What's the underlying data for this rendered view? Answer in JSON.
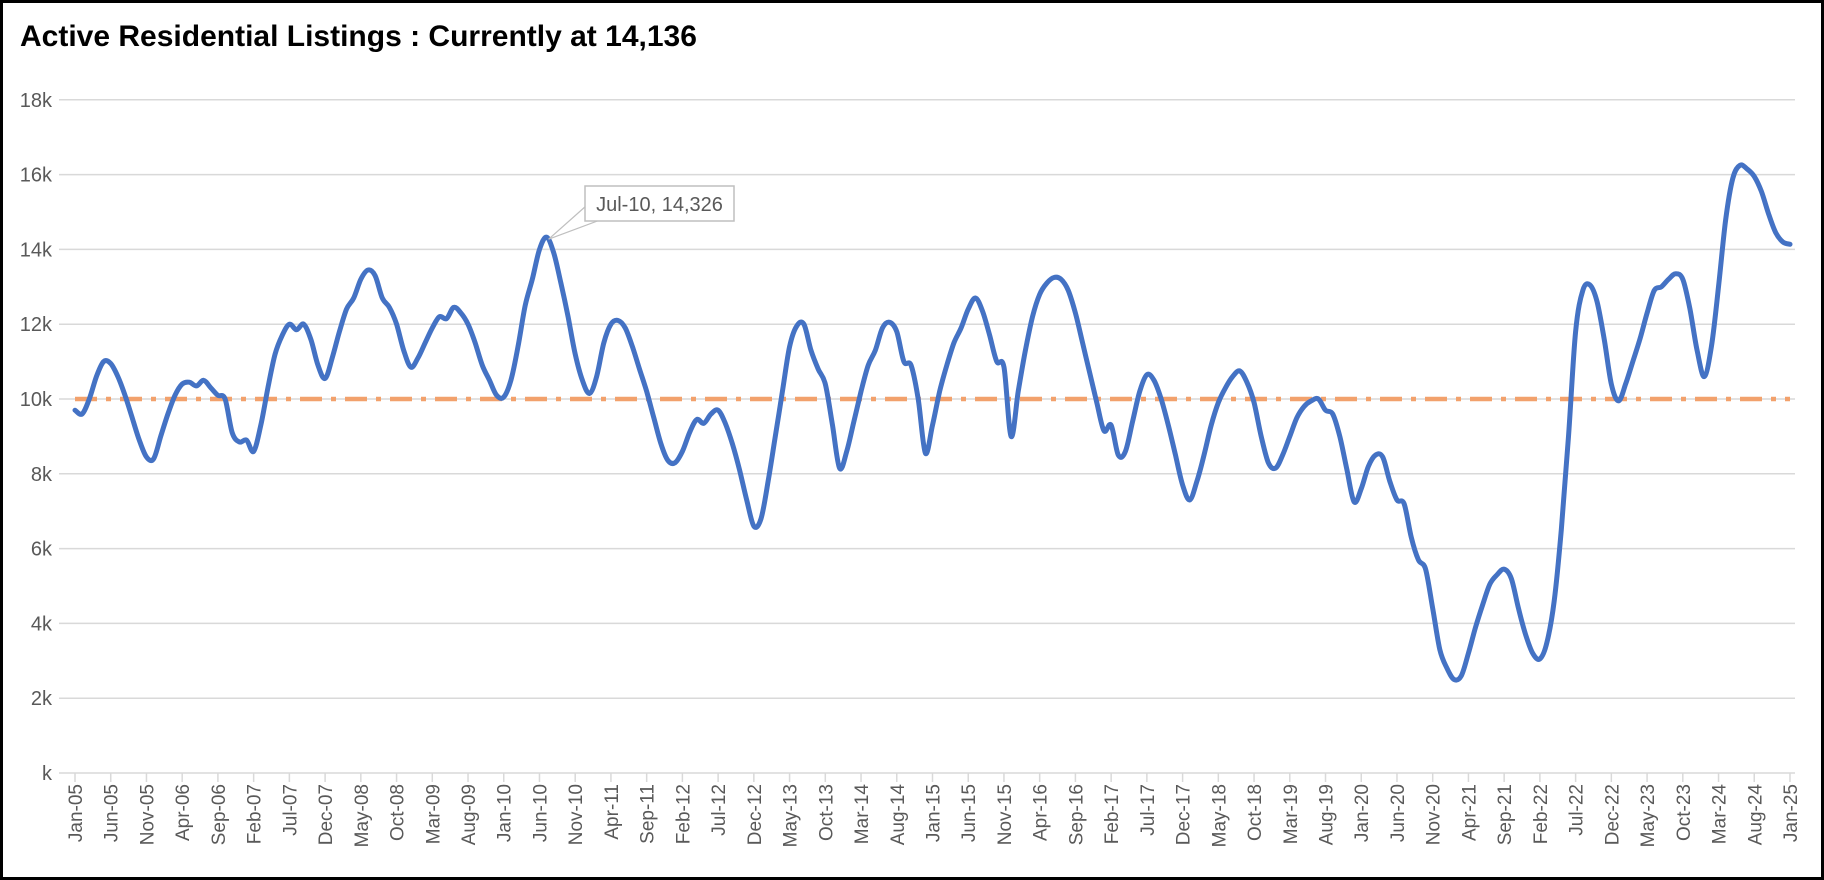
{
  "title": "Active Residential Listings : Currently at  14,136",
  "current_value": "14,136",
  "colors": {
    "series_line": "#4472C4",
    "reference_line": "#F2A16C",
    "gridline": "#D9D9D9",
    "axis_text": "#595959",
    "title_text": "#000000",
    "callout_border": "#BFBFBF",
    "frame_border": "#000000",
    "background": "#FFFFFF"
  },
  "chart_data": {
    "type": "line",
    "title": "Active Residential Listings : Currently at  14,136",
    "xlabel": "",
    "ylabel": "",
    "grid": "horizontal",
    "legend": "none",
    "ylim": [
      0,
      18000
    ],
    "y_unit": "thousands of listings",
    "y_tick_labels": [
      "k",
      "2k",
      "4k",
      "6k",
      "8k",
      "10k",
      "12k",
      "14k",
      "16k",
      "18k"
    ],
    "y_tick_values_k": [
      0,
      2,
      4,
      6,
      8,
      10,
      12,
      14,
      16,
      18
    ],
    "x_start": "Jan-05",
    "x_end": "Jan-25",
    "x_frequency": "monthly",
    "x_tick_interval_months": 5,
    "x_tick_labels": [
      "Jan-05",
      "Jun-05",
      "Nov-05",
      "Apr-06",
      "Sep-06",
      "Feb-07",
      "Jul-07",
      "Dec-07",
      "May-08",
      "Oct-08",
      "Mar-09",
      "Aug-09",
      "Jan-10",
      "Jun-10",
      "Nov-10",
      "Apr-11",
      "Sep-11",
      "Feb-12",
      "Jul-12",
      "Dec-12",
      "May-13",
      "Oct-13",
      "Mar-14",
      "Aug-14",
      "Jan-15",
      "Jun-15",
      "Nov-15",
      "Apr-16",
      "Sep-16",
      "Feb-17",
      "Jul-17",
      "Dec-17",
      "May-18",
      "Oct-18",
      "Mar-19",
      "Aug-19",
      "Jan-20",
      "Jun-20",
      "Nov-20",
      "Apr-21",
      "Sep-21",
      "Feb-22",
      "Jul-22",
      "Dec-22",
      "May-23",
      "Oct-23",
      "Mar-24",
      "Aug-24",
      "Jan-25"
    ],
    "reference_line": {
      "value_k": 10,
      "style": "dash-dot",
      "color": "#F2A16C"
    },
    "annotation": {
      "label": "Jul-10, 14,326",
      "target_month": "Jul-10",
      "target_index": 66,
      "target_value": 14326
    },
    "series": [
      {
        "name": "Active Residential Listings",
        "color": "#4472C4",
        "start_month": "Jan-05",
        "values_thousands": [
          9.7,
          9.6,
          10.0,
          10.6,
          11.0,
          10.95,
          10.6,
          10.1,
          9.5,
          8.9,
          8.45,
          8.4,
          9.0,
          9.6,
          10.1,
          10.4,
          10.45,
          10.35,
          10.5,
          10.3,
          10.1,
          10.0,
          9.1,
          8.85,
          8.9,
          8.6,
          9.3,
          10.3,
          11.2,
          11.7,
          12.0,
          11.85,
          12.0,
          11.6,
          10.9,
          10.55,
          11.1,
          11.8,
          12.4,
          12.7,
          13.2,
          13.45,
          13.3,
          12.7,
          12.45,
          12.0,
          11.3,
          10.85,
          11.1,
          11.5,
          11.9,
          12.2,
          12.15,
          12.45,
          12.3,
          12.0,
          11.5,
          10.9,
          10.5,
          10.1,
          10.05,
          10.5,
          11.4,
          12.5,
          13.2,
          14.0,
          14.326,
          13.9,
          13.1,
          12.2,
          11.2,
          10.5,
          10.15,
          10.6,
          11.5,
          12.0,
          12.1,
          11.9,
          11.4,
          10.8,
          10.2,
          9.5,
          8.8,
          8.35,
          8.3,
          8.6,
          9.1,
          9.45,
          9.35,
          9.6,
          9.7,
          9.35,
          8.8,
          8.1,
          7.3,
          6.6,
          6.8,
          7.8,
          9.0,
          10.2,
          11.4,
          11.95,
          12.0,
          11.3,
          10.8,
          10.4,
          9.3,
          8.15,
          8.6,
          9.4,
          10.2,
          10.9,
          11.3,
          11.9,
          12.05,
          11.8,
          11.0,
          10.9,
          10.0,
          8.55,
          9.3,
          10.2,
          10.9,
          11.5,
          11.9,
          12.4,
          12.7,
          12.35,
          11.7,
          11.0,
          10.85,
          9.0,
          10.2,
          11.3,
          12.2,
          12.8,
          13.1,
          13.25,
          13.2,
          12.9,
          12.3,
          11.5,
          10.7,
          9.9,
          9.15,
          9.3,
          8.5,
          8.6,
          9.4,
          10.2,
          10.65,
          10.5,
          10.0,
          9.3,
          8.5,
          7.7,
          7.3,
          7.8,
          8.5,
          9.3,
          9.9,
          10.3,
          10.6,
          10.75,
          10.45,
          9.9,
          9.0,
          8.3,
          8.15,
          8.5,
          9.0,
          9.5,
          9.8,
          9.95,
          10.0,
          9.7,
          9.6,
          9.0,
          8.1,
          7.25,
          7.6,
          8.2,
          8.5,
          8.45,
          7.8,
          7.3,
          7.2,
          6.3,
          5.7,
          5.45,
          4.4,
          3.3,
          2.8,
          2.5,
          2.6,
          3.2,
          3.9,
          4.5,
          5.05,
          5.3,
          5.45,
          5.2,
          4.4,
          3.7,
          3.2,
          3.05,
          3.5,
          4.6,
          6.5,
          9.0,
          11.8,
          12.9,
          13.05,
          12.6,
          11.6,
          10.4,
          9.95,
          10.4,
          11.0,
          11.6,
          12.3,
          12.9,
          13.0,
          13.2,
          13.35,
          13.2,
          12.4,
          11.3,
          10.6,
          11.4,
          13.0,
          14.8,
          15.9,
          16.25,
          16.15,
          15.95,
          15.55,
          14.95,
          14.45,
          14.2,
          14.136
        ]
      }
    ]
  }
}
